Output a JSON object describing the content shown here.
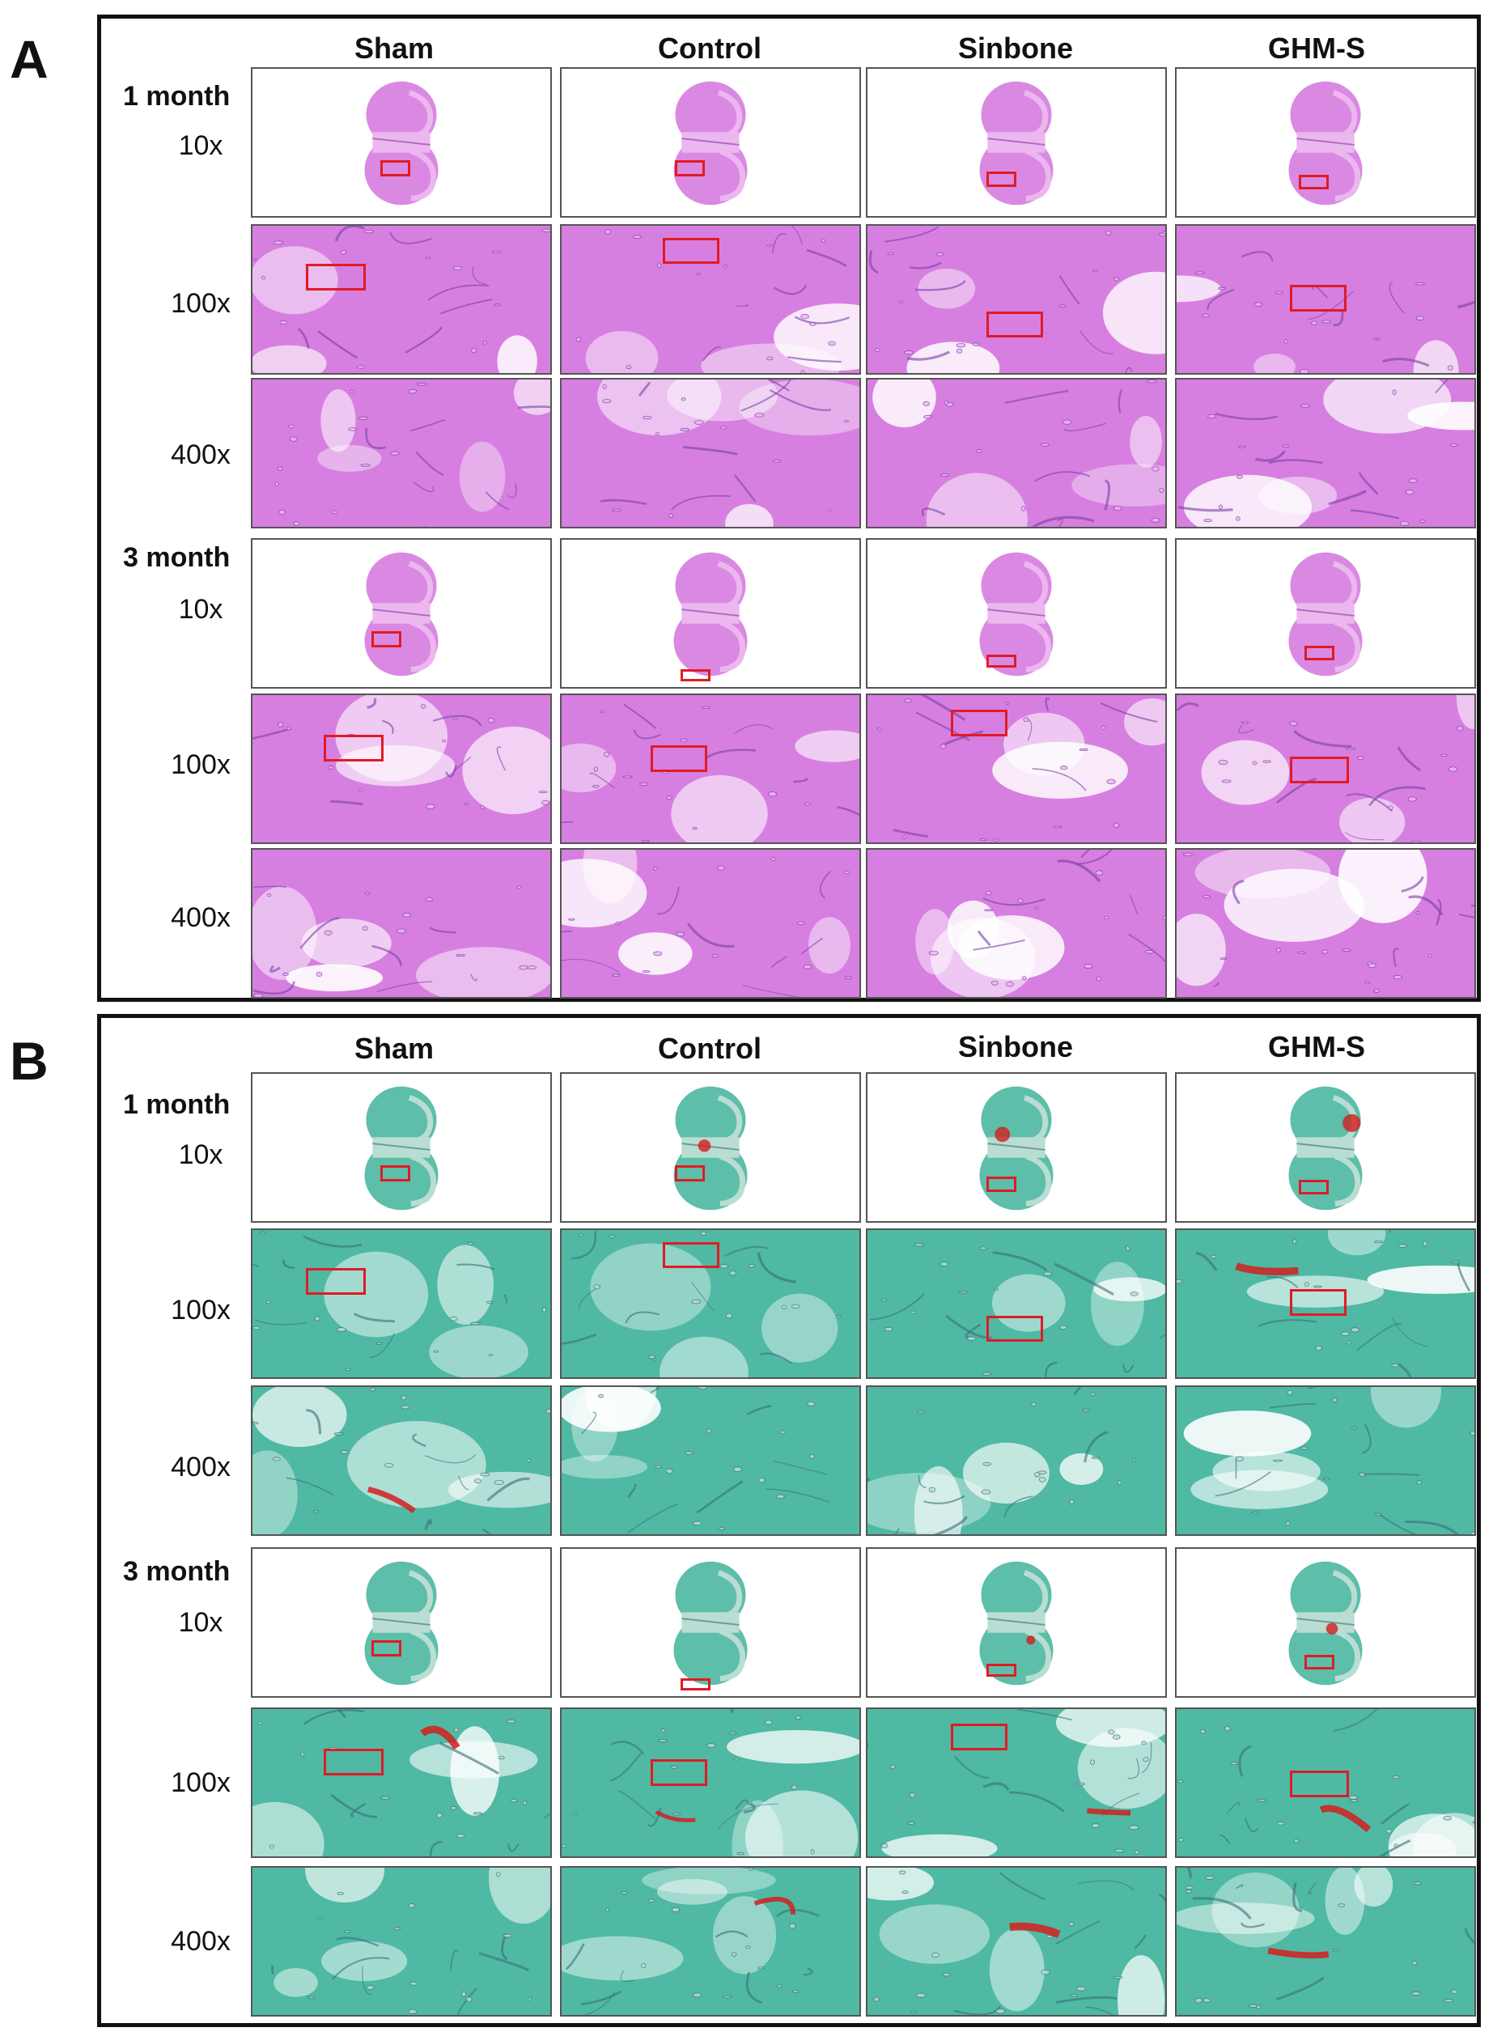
{
  "panels": [
    {
      "letter": "A",
      "stain": "he",
      "columns": [
        "Sham",
        "Control",
        "Sinbone",
        "GHM-S"
      ],
      "groups": [
        {
          "time": "1 month",
          "mags": [
            "10x",
            "100x",
            "400x"
          ]
        },
        {
          "time": "3 month",
          "mags": [
            "10x",
            "100x",
            "400x"
          ]
        }
      ]
    },
    {
      "letter": "B",
      "stain": "trichrome",
      "columns": [
        "Sham",
        "Control",
        "Sinbone",
        "GHM-S"
      ],
      "groups": [
        {
          "time": "1 month",
          "mags": [
            "10x",
            "100x",
            "400x"
          ]
        },
        {
          "time": "3 month",
          "mags": [
            "10x",
            "100x",
            "400x"
          ]
        }
      ]
    }
  ],
  "colors": {
    "he_tissue": "#d77fe0",
    "he_dark": "#7a3fa6",
    "he_light": "#ecb6ef",
    "tri_tissue": "#4fb9a3",
    "tri_dark": "#3a6e7a",
    "tri_light": "#b9ddd2",
    "tri_red": "#d21e1e",
    "roi": "#e01b24"
  }
}
